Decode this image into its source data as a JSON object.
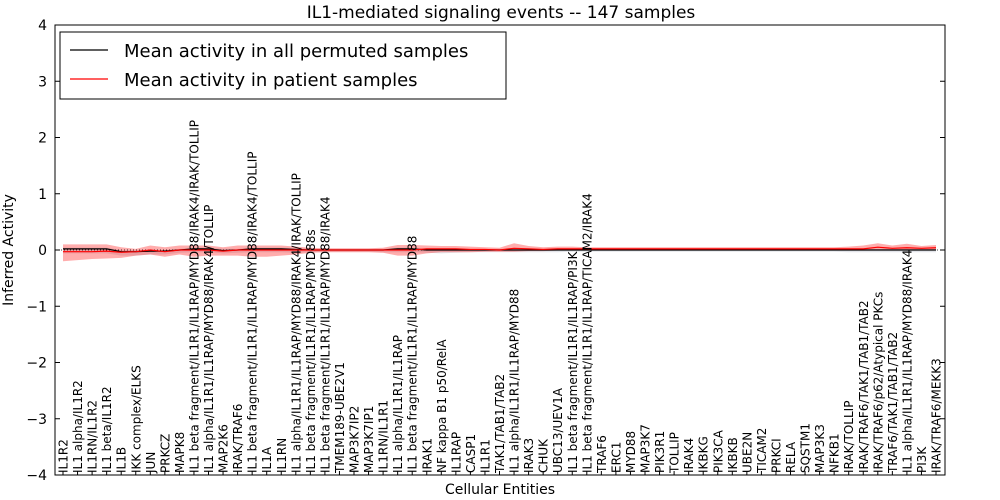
{
  "chart_data": {
    "type": "line",
    "title": "IL1-mediated signaling events -- 147 samples",
    "xlabel": "Cellular Entities",
    "ylabel": "Inferred Activity",
    "ylim": [
      -4,
      4
    ],
    "yticks": [
      "4",
      "3",
      "2",
      "1",
      "0",
      "−1",
      "−2",
      "−3",
      "−4"
    ],
    "legend_position": "top-left",
    "categories": [
      "IL1R2",
      "IL1 alpha/IL1R2",
      "IL1RN/IL1R2",
      "IL1 beta/IL1R2",
      "IL1B",
      "IKK complex/ELKS",
      "JUN",
      "PRKCZ",
      "MAPK8",
      "IL1 beta fragment/IL1R1/IL1RAP/MYD88/IRAK4/IRAK/TOLLIP",
      "IL1 alpha/IL1R1/IL1RAP/MYD88/IRAK4/TOLLIP",
      "MAP2K6",
      "IRAK/TRAF6",
      "IL1 beta fragment/IL1R1/IL1RAP/MYD88/IRAK4/TOLLIP",
      "IL1A",
      "IL1RN",
      "IL1 alpha/IL1R1/IL1RAP/MYD88/IRAK4/IRAK/TOLLIP",
      "IL1 beta fragment/IL1R1/IL1RAP/MYD88s",
      "IL1 beta fragment/IL1R1/IL1RAP/MYD88/IRAK4",
      "TMEM189-UBE2V1",
      "MAP3K7IP2",
      "MAP3K7IP1",
      "IL1RN/IL1R1",
      "IL1 alpha/IL1R1/IL1RAP",
      "IL1 beta fragment/IL1R1/IL1RAP/MYD88",
      "IRAK1",
      "NF kappa B1 p50/RelA",
      "IL1RAP",
      "CASP1",
      "IL1R1",
      "TAK1/TAB1/TAB2",
      "IL1 alpha/IL1R1/IL1RAP/MYD88",
      "IRAK3",
      "CHUK",
      "UBC13/UEV1A",
      "IL1 beta fragment/IL1R1/IL1RAP/PI3K",
      "IL1 beta fragment/IL1R1/IL1RAP/TICAM2/IRAK4",
      "TRAF6",
      "ERC1",
      "MYD88",
      "MAP3K7",
      "PIK3R1",
      "TOLLIP",
      "IRAK4",
      "IKBKG",
      "PIK3CA",
      "IKBKB",
      "UBE2N",
      "TICAM2",
      "PRKCI",
      "RELA",
      "SQSTM1",
      "MAP3K3",
      "NFKB1",
      "IRAK/TOLLIP",
      "IRAK/TRAF6/TAK1/TAB1/TAB2",
      "IRAK/TRAF6/p62/Atypical PKCs",
      "TRAF6/TAK1/TAB1/TAB2",
      "IL1 alpha/IL1R1/IL1RAP/MYD88/IRAK4",
      "PI3K",
      "IRAK/TRAF6/MEKK3"
    ],
    "series": [
      {
        "name": "Mean activity in all permuted samples",
        "color": "#000000",
        "values": [
          0.02,
          0.02,
          0.02,
          0.02,
          -0.03,
          -0.03,
          -0.02,
          -0.02,
          0.0,
          0.02,
          0.02,
          -0.01,
          0.0,
          0.02,
          0.02,
          0.02,
          0.01,
          0.0,
          0.0,
          0.0,
          0.0,
          0.0,
          0.0,
          0.02,
          0.02,
          0.0,
          0.0,
          0.0,
          0.0,
          0.0,
          0.0,
          0.0,
          0.0,
          0.0,
          0.0,
          0.0,
          0.0,
          0.0,
          0.0,
          0.0,
          0.0,
          0.0,
          0.0,
          0.0,
          0.0,
          0.0,
          0.0,
          0.0,
          0.0,
          0.0,
          0.0,
          0.0,
          0.0,
          0.0,
          0.0,
          0.0,
          0.0,
          0.0,
          0.0,
          0.0,
          0.0
        ],
        "band_upper": [
          0.04,
          0.04,
          0.04,
          0.04,
          0.0,
          0.0,
          0.0,
          0.0,
          0.02,
          0.04,
          0.04,
          0.02,
          0.02,
          0.04,
          0.04,
          0.04,
          0.03,
          0.02,
          0.02,
          0.02,
          0.02,
          0.02,
          0.02,
          0.04,
          0.04,
          0.02,
          0.02,
          0.02,
          0.02,
          0.02,
          0.02,
          0.02,
          0.02,
          0.02,
          0.02,
          0.02,
          0.02,
          0.02,
          0.02,
          0.02,
          0.02,
          0.02,
          0.02,
          0.02,
          0.02,
          0.02,
          0.02,
          0.02,
          0.02,
          0.02,
          0.02,
          0.02,
          0.02,
          0.02,
          0.02,
          0.02,
          0.02,
          0.02,
          0.02,
          0.02,
          0.02
        ],
        "band_lower": [
          -0.06,
          -0.06,
          -0.06,
          -0.06,
          -0.1,
          -0.1,
          -0.08,
          -0.08,
          -0.05,
          -0.04,
          -0.04,
          -0.06,
          -0.05,
          -0.04,
          -0.04,
          -0.04,
          -0.05,
          -0.04,
          -0.03,
          -0.03,
          -0.03,
          -0.03,
          -0.04,
          -0.04,
          -0.04,
          -0.05,
          -0.06,
          -0.05,
          -0.04,
          -0.04,
          -0.04,
          -0.04,
          -0.04,
          -0.04,
          -0.04,
          -0.03,
          -0.03,
          -0.03,
          -0.03,
          -0.03,
          -0.03,
          -0.03,
          -0.03,
          -0.03,
          -0.03,
          -0.03,
          -0.03,
          -0.03,
          -0.03,
          -0.03,
          -0.03,
          -0.03,
          -0.03,
          -0.03,
          -0.04,
          -0.04,
          -0.04,
          -0.04,
          -0.04,
          -0.04,
          -0.04
        ]
      },
      {
        "name": "Mean activity in patient samples",
        "color": "#ff0000",
        "values": [
          -0.03,
          -0.03,
          -0.03,
          -0.02,
          -0.04,
          -0.03,
          0.0,
          -0.03,
          0.0,
          0.0,
          0.0,
          -0.02,
          0.0,
          0.0,
          0.0,
          0.0,
          0.0,
          0.0,
          0.0,
          0.0,
          0.0,
          0.0,
          0.0,
          0.0,
          0.0,
          0.02,
          0.02,
          0.02,
          0.01,
          0.01,
          0.0,
          0.03,
          0.02,
          0.01,
          0.02,
          0.02,
          0.02,
          0.02,
          0.02,
          0.02,
          0.02,
          0.02,
          0.02,
          0.02,
          0.02,
          0.02,
          0.02,
          0.02,
          0.02,
          0.02,
          0.02,
          0.02,
          0.02,
          0.02,
          0.02,
          0.02,
          0.05,
          0.03,
          0.04,
          0.03,
          0.04
        ],
        "band_upper": [
          0.1,
          0.1,
          0.1,
          0.1,
          0.05,
          0.02,
          0.08,
          0.05,
          0.08,
          0.08,
          0.08,
          0.05,
          0.08,
          0.08,
          0.08,
          0.08,
          0.06,
          0.04,
          0.03,
          0.03,
          0.03,
          0.03,
          0.04,
          0.09,
          0.09,
          0.08,
          0.07,
          0.07,
          0.06,
          0.05,
          0.04,
          0.12,
          0.07,
          0.05,
          0.06,
          0.06,
          0.05,
          0.05,
          0.05,
          0.05,
          0.05,
          0.05,
          0.05,
          0.05,
          0.05,
          0.05,
          0.05,
          0.05,
          0.05,
          0.05,
          0.05,
          0.05,
          0.05,
          0.05,
          0.06,
          0.08,
          0.12,
          0.08,
          0.11,
          0.07,
          0.09
        ],
        "band_lower": [
          -0.2,
          -0.18,
          -0.16,
          -0.15,
          -0.14,
          -0.1,
          -0.08,
          -0.12,
          -0.08,
          -0.12,
          -0.1,
          -0.1,
          -0.1,
          -0.12,
          -0.12,
          -0.1,
          -0.08,
          -0.05,
          -0.04,
          -0.04,
          -0.04,
          -0.04,
          -0.05,
          -0.1,
          -0.1,
          -0.06,
          -0.04,
          -0.04,
          -0.04,
          -0.03,
          -0.03,
          -0.03,
          -0.02,
          -0.02,
          -0.01,
          -0.01,
          -0.01,
          -0.01,
          -0.01,
          -0.01,
          -0.01,
          -0.01,
          -0.01,
          -0.01,
          -0.01,
          -0.01,
          -0.01,
          -0.01,
          -0.01,
          -0.01,
          -0.01,
          -0.01,
          -0.01,
          -0.01,
          -0.01,
          -0.01,
          -0.01,
          -0.01,
          -0.01,
          -0.01,
          -0.01
        ]
      }
    ]
  }
}
